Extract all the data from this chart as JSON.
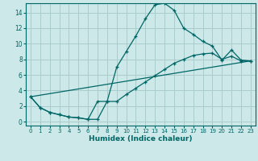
{
  "xlabel": "Humidex (Indice chaleur)",
  "xlim": [
    -0.5,
    23.5
  ],
  "ylim": [
    -0.5,
    15.2
  ],
  "xticks": [
    0,
    1,
    2,
    3,
    4,
    5,
    6,
    7,
    8,
    9,
    10,
    11,
    12,
    13,
    14,
    15,
    16,
    17,
    18,
    19,
    20,
    21,
    22,
    23
  ],
  "yticks": [
    0,
    2,
    4,
    6,
    8,
    10,
    12,
    14
  ],
  "background_color": "#cce8e8",
  "grid_color": "#aacccc",
  "line_color": "#006666",
  "lines": [
    {
      "x": [
        0,
        1,
        2,
        3,
        4,
        5,
        6,
        7,
        8,
        9,
        10,
        11,
        12,
        13,
        14,
        15,
        16,
        17,
        18,
        19,
        20,
        21,
        22,
        23
      ],
      "y": [
        3.2,
        1.8,
        1.2,
        0.9,
        0.6,
        0.5,
        0.3,
        0.3,
        2.6,
        7.0,
        9.0,
        11.0,
        13.2,
        15.0,
        15.2,
        14.3,
        12.0,
        11.2,
        10.3,
        9.7,
        7.9,
        9.2,
        7.9,
        7.8
      ],
      "marker": true
    },
    {
      "x": [
        0,
        1,
        2,
        3,
        4,
        5,
        6,
        7,
        8,
        9,
        10,
        11,
        12,
        13,
        14,
        15,
        16,
        17,
        18,
        19,
        20,
        21,
        22,
        23
      ],
      "y": [
        3.2,
        1.8,
        1.2,
        0.9,
        0.6,
        0.5,
        0.3,
        2.6,
        2.6,
        2.6,
        3.5,
        4.3,
        5.1,
        5.9,
        6.7,
        7.5,
        8.0,
        8.5,
        8.7,
        8.8,
        8.0,
        8.4,
        7.8,
        7.8
      ],
      "marker": true
    },
    {
      "x": [
        0,
        23
      ],
      "y": [
        3.2,
        7.8
      ],
      "marker": false
    }
  ]
}
